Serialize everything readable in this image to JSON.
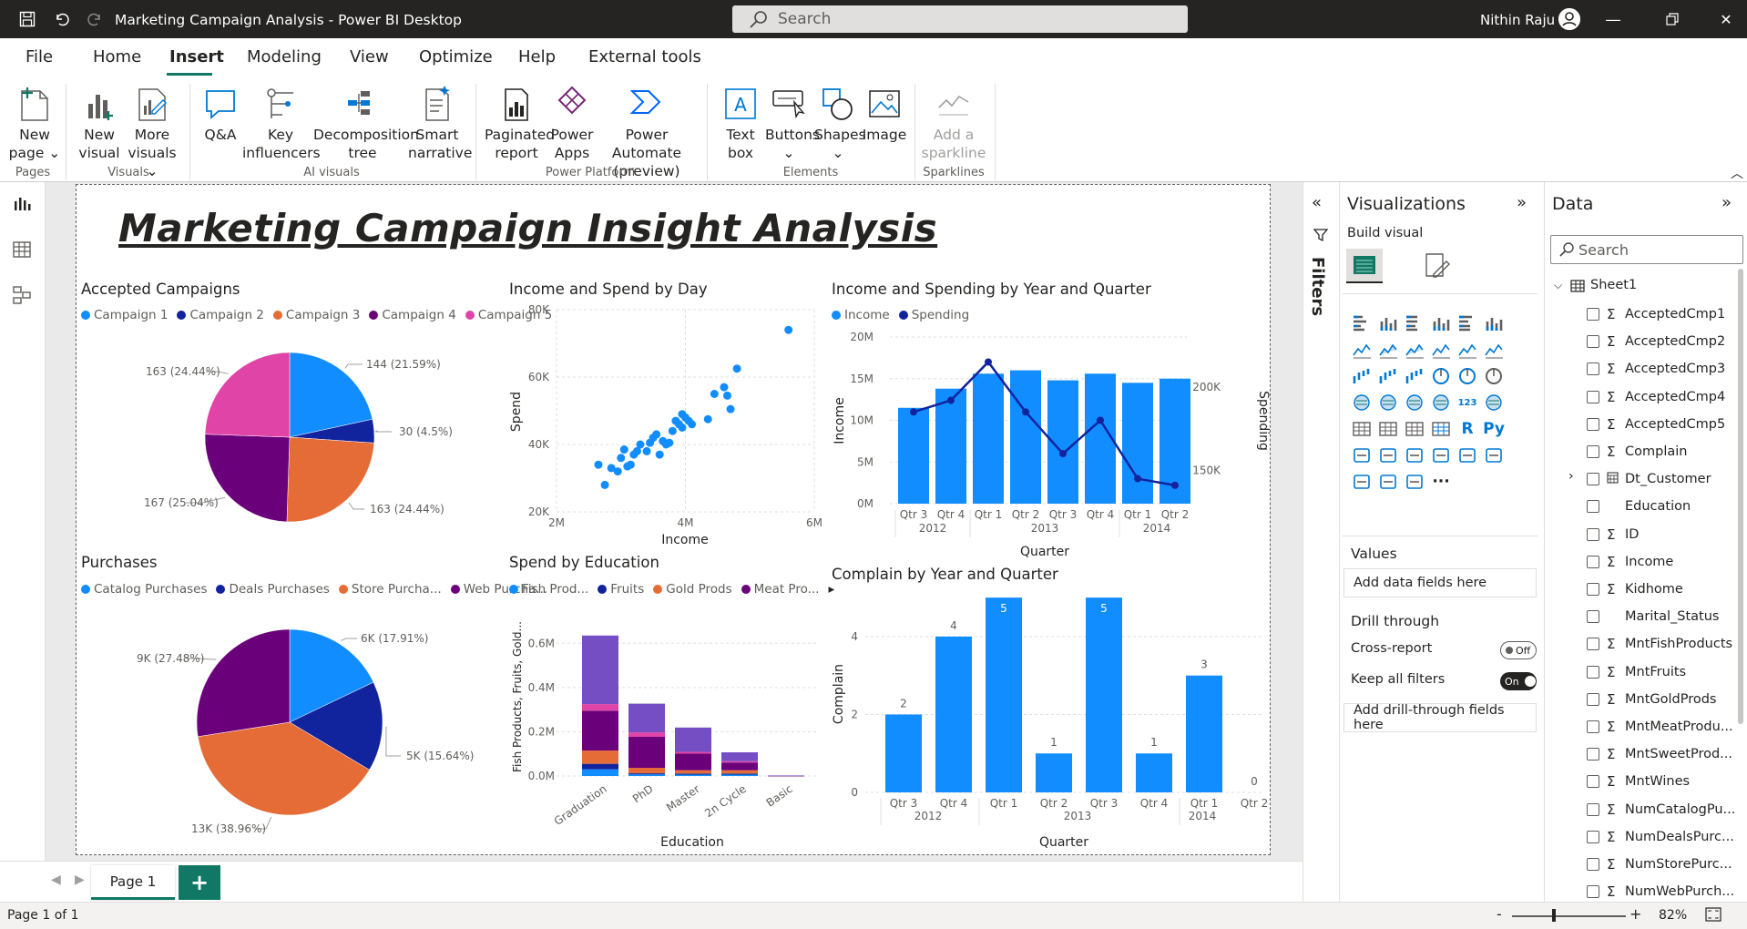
{
  "window": {
    "title": "Marketing Campaign Analysis - Power BI Desktop",
    "search_placeholder": "Search",
    "user": "Nithin Raju"
  },
  "menu": [
    "File",
    "Home",
    "Insert",
    "Modeling",
    "View",
    "Optimize",
    "Help",
    "External tools"
  ],
  "ribbon": {
    "new_page": "New\npage ⌄",
    "new_visual": "New\nvisual",
    "more_visuals": "More\nvisuals ⌄",
    "qa": "Q&A",
    "key_influencers": "Key\ninfluencers",
    "decomposition_tree": "Decomposition\ntree",
    "smart_narrative": "Smart\nnarrative",
    "paginated_report": "Paginated\nreport",
    "power_apps": "Power\nApps",
    "power_automate": "Power Automate\n(preview)",
    "text_box": "Text\nbox",
    "buttons": "Buttons\n⌄",
    "shapes": "Shapes\n⌄",
    "image": "Image",
    "add_sparkline": "Add a\nsparkline",
    "groups": {
      "pages": "Pages",
      "visuals": "Visuals",
      "ai_visuals": "AI visuals",
      "power_platform": "Power Platform",
      "elements": "Elements",
      "sparklines": "Sparklines"
    }
  },
  "report": {
    "title": "Marketing Campaign Insight Analysis"
  },
  "visuals": {
    "accepted": {
      "title": "Accepted Campaigns",
      "legend": [
        "Campaign 1",
        "Campaign 2",
        "Campaign 3",
        "Campaign 4",
        "Campaign 5"
      ],
      "labels": [
        "144 (21.59%)",
        "30 (4.5%)",
        "163 (24.44%)",
        "167 (25.04%)",
        "163 (24.44%)"
      ]
    },
    "purchases": {
      "title": "Purchases",
      "legend": [
        "Catalog Purchases",
        "Deals Purchases",
        "Store Purcha...",
        "Web Purcha..."
      ],
      "labels": [
        "6K (17.91%)",
        "5K (15.64%)",
        "13K (38.96%)",
        "9K (27.48%)"
      ]
    },
    "scatter": {
      "title": "Income and Spend by Day",
      "xlabel": "Income",
      "ylabel": "Spend",
      "xticks": [
        "2M",
        "4M",
        "6M"
      ],
      "yticks": [
        "20K",
        "40K",
        "60K",
        "80K"
      ]
    },
    "education": {
      "title": "Spend by Education",
      "legend": [
        "Fish Prod...",
        "Fruits",
        "Gold Prods",
        "Meat Pro..."
      ],
      "xlabel": "Education",
      "ylabel": "Fish Products, Fruits, Gold...",
      "yticks": [
        "0.0M",
        "0.2M",
        "0.4M",
        "0.6M"
      ]
    },
    "incspend": {
      "title": "Income and Spending by Year and Quarter",
      "legend": [
        "Income",
        "Spending"
      ],
      "xlabel": "Quarter",
      "ylabel": "Income",
      "y2label": "Spending",
      "yticks": [
        "0M",
        "5M",
        "10M",
        "15M",
        "20M"
      ],
      "y2ticks": [
        "150K",
        "200K"
      ]
    },
    "complain": {
      "title": "Complain by Year and Quarter",
      "xlabel": "Quarter",
      "ylabel": "Complain",
      "yticks": [
        "0",
        "2",
        "4"
      ]
    }
  },
  "chart_data": [
    {
      "type": "pie",
      "title": "Accepted Campaigns",
      "categories": [
        "Campaign 1",
        "Campaign 2",
        "Campaign 3",
        "Campaign 4",
        "Campaign 5"
      ],
      "values": [
        144,
        30,
        163,
        167,
        163
      ],
      "colors": [
        "#118DFF",
        "#12239E",
        "#E66C37",
        "#6B007B",
        "#E044A7"
      ]
    },
    {
      "type": "pie",
      "title": "Purchases",
      "categories": [
        "Catalog Purchases",
        "Deals Purchases",
        "Store Purchases",
        "Web Purchases"
      ],
      "values": [
        6000,
        5240,
        13050,
        9200
      ],
      "colors": [
        "#118DFF",
        "#12239E",
        "#E66C37",
        "#6B007B"
      ]
    },
    {
      "type": "scatter",
      "title": "Income and Spend by Day",
      "xlabel": "Income",
      "ylabel": "Spend",
      "xlim": [
        2000000,
        6000000
      ],
      "ylim": [
        20000,
        80000
      ],
      "points": [
        [
          2.65,
          34
        ],
        [
          2.75,
          28
        ],
        [
          2.85,
          33
        ],
        [
          2.95,
          32
        ],
        [
          3.0,
          36
        ],
        [
          3.05,
          38.5
        ],
        [
          3.1,
          33.5
        ],
        [
          3.15,
          34
        ],
        [
          3.2,
          37
        ],
        [
          3.25,
          38
        ],
        [
          3.3,
          40
        ],
        [
          3.4,
          38
        ],
        [
          3.45,
          40.5
        ],
        [
          3.5,
          42
        ],
        [
          3.55,
          43
        ],
        [
          3.6,
          37
        ],
        [
          3.65,
          41
        ],
        [
          3.7,
          40
        ],
        [
          3.75,
          40.5
        ],
        [
          3.8,
          44
        ],
        [
          3.85,
          47
        ],
        [
          3.9,
          46
        ],
        [
          3.95,
          49
        ],
        [
          3.95,
          45
        ],
        [
          4.0,
          48
        ],
        [
          4.05,
          47
        ],
        [
          4.1,
          46
        ],
        [
          4.35,
          47.5
        ],
        [
          4.45,
          55
        ],
        [
          4.6,
          57
        ],
        [
          4.65,
          54.5
        ],
        [
          4.7,
          50.5
        ],
        [
          4.8,
          62.5
        ],
        [
          5.6,
          74
        ]
      ]
    },
    {
      "type": "bar",
      "stacked": true,
      "title": "Spend by Education",
      "categories": [
        "Graduation",
        "PhD",
        "Master",
        "2n Cycle",
        "Basic"
      ],
      "series": [
        {
          "name": "Fish Prod...",
          "values": [
            0.03,
            0.007,
            0.006,
            0.006,
            0.0003
          ]
        },
        {
          "name": "Fruits",
          "values": [
            0.025,
            0.005,
            0.005,
            0.005,
            0.0002
          ]
        },
        {
          "name": "Gold Prods",
          "values": [
            0.06,
            0.025,
            0.015,
            0.015,
            0.0006
          ]
        },
        {
          "name": "Meat Pro...",
          "values": [
            0.18,
            0.14,
            0.075,
            0.035,
            0.0006
          ]
        },
        {
          "name": "",
          "values": [
            0.03,
            0.02,
            0.008,
            0.006,
            0.0003
          ]
        },
        {
          "name": "",
          "values": [
            0.31,
            0.13,
            0.11,
            0.04,
            0.0003
          ]
        }
      ],
      "colors": [
        "#118DFF",
        "#12239E",
        "#E66C37",
        "#6B007B",
        "#E044A7",
        "#744EC2"
      ],
      "ylim": [
        0,
        0.7
      ]
    },
    {
      "type": "bar",
      "title": "Income and Spending by Year and Quarter",
      "categories": [
        "Qtr 3",
        "Qtr 4",
        "Qtr 1",
        "Qtr 2",
        "Qtr 3",
        "Qtr 4",
        "Qtr 1",
        "Qtr 2"
      ],
      "years": [
        "2012",
        "2013",
        "2014"
      ],
      "series": [
        {
          "name": "Income",
          "values": [
            11.5,
            13.8,
            15.6,
            16.0,
            14.8,
            15.6,
            14.5,
            15.0
          ],
          "color": "#118DFF"
        },
        {
          "name": "Spending",
          "values": [
            185,
            192,
            215,
            185,
            160,
            180,
            145,
            141
          ],
          "color": "#12239E"
        }
      ],
      "ylim": [
        0,
        20
      ],
      "y2lim": [
        130,
        230
      ]
    },
    {
      "type": "bar",
      "title": "Complain by Year and Quarter",
      "categories": [
        "Qtr 3",
        "Qtr 4",
        "Qtr 1",
        "Qtr 2",
        "Qtr 3",
        "Qtr 4",
        "Qtr 1",
        "Qtr 2"
      ],
      "years": [
        "2012",
        "2013",
        "2014"
      ],
      "values": [
        2,
        4,
        5,
        1,
        5,
        1,
        3,
        0
      ],
      "ylim": [
        0,
        5
      ]
    }
  ],
  "viz_pane": {
    "title": "Visualizations",
    "build_visual": "Build visual",
    "values": "Values",
    "add_data": "Add data fields here",
    "drill_through": "Drill through",
    "cross_report": "Cross-report",
    "cross_report_state": "Off",
    "keep_filters": "Keep all filters",
    "keep_filters_state": "On",
    "add_drill": "Add drill-through fields here"
  },
  "filters": {
    "label": "Filters"
  },
  "data_pane": {
    "title": "Data",
    "search": "Search",
    "table": "Sheet1",
    "fields": [
      {
        "n": "AcceptedCmp1",
        "s": true
      },
      {
        "n": "AcceptedCmp2",
        "s": true
      },
      {
        "n": "AcceptedCmp3",
        "s": true
      },
      {
        "n": "AcceptedCmp4",
        "s": true
      },
      {
        "n": "AcceptedCmp5",
        "s": true
      },
      {
        "n": "Complain",
        "s": true
      },
      {
        "n": "Dt_Customer",
        "s": false,
        "d": true
      },
      {
        "n": "Education",
        "s": false
      },
      {
        "n": "ID",
        "s": true
      },
      {
        "n": "Income",
        "s": true
      },
      {
        "n": "Kidhome",
        "s": true
      },
      {
        "n": "Marital_Status",
        "s": false
      },
      {
        "n": "MntFishProducts",
        "s": true
      },
      {
        "n": "MntFruits",
        "s": true
      },
      {
        "n": "MntGoldProds",
        "s": true
      },
      {
        "n": "MntMeatProdu...",
        "s": true
      },
      {
        "n": "MntSweetProd...",
        "s": true
      },
      {
        "n": "MntWines",
        "s": true
      },
      {
        "n": "NumCatalogPu...",
        "s": true
      },
      {
        "n": "NumDealsPurc...",
        "s": true
      },
      {
        "n": "NumStorePurc...",
        "s": true
      },
      {
        "n": "NumWebPurch...",
        "s": true
      }
    ]
  },
  "pages": {
    "tab": "Page 1",
    "status": "Page 1 of 1",
    "zoom": "82%"
  }
}
